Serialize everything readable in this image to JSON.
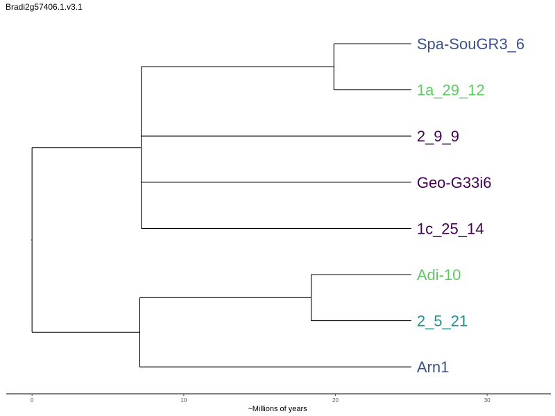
{
  "title": "Bradi2g57406.1.v3.1",
  "axis": {
    "label": "~Millions of years",
    "ticks": [
      0,
      10,
      20,
      30
    ],
    "range": [
      -1.7,
      34.2
    ]
  },
  "tree": {
    "age": 0,
    "children": [
      {
        "age": 7.2,
        "children": [
          {
            "age": 19.9,
            "children": [
              {
                "leaf": "Spa-SouGR3_6",
                "color": "#3b528b"
              },
              {
                "leaf": "1a_29_12",
                "color": "#5ec962"
              }
            ]
          },
          {
            "leaf": "2_9_9",
            "color": "#440154"
          },
          {
            "leaf": "Geo-G33i6",
            "color": "#440154"
          },
          {
            "leaf": "1c_25_14",
            "color": "#440154"
          }
        ]
      },
      {
        "age": 7.1,
        "children": [
          {
            "age": 18.4,
            "children": [
              {
                "leaf": "Adi-10",
                "color": "#5ec962"
              },
              {
                "leaf": "2_5_21",
                "color": "#21918c"
              }
            ]
          },
          {
            "leaf": "Arn1",
            "color": "#3b528b"
          }
        ]
      }
    ]
  },
  "tip_age": 25.0
}
